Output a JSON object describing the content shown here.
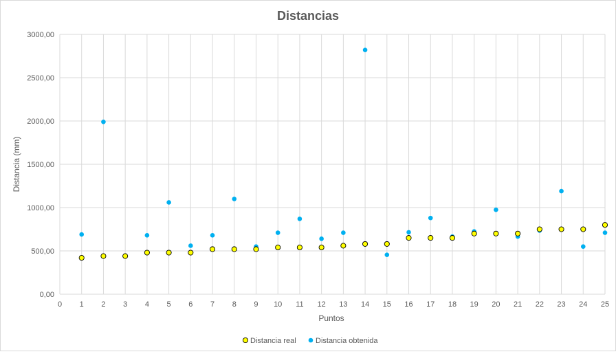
{
  "chart_data": {
    "type": "scatter",
    "title": "Distancias",
    "xlabel": "Puntos",
    "ylabel": "Distancia (mm)",
    "xlim": [
      0,
      25
    ],
    "ylim": [
      0,
      3000
    ],
    "x_ticks": [
      "0",
      "1",
      "2",
      "3",
      "4",
      "5",
      "6",
      "7",
      "8",
      "9",
      "10",
      "11",
      "12",
      "13",
      "14",
      "15",
      "16",
      "17",
      "18",
      "19",
      "20",
      "21",
      "22",
      "23",
      "24",
      "25"
    ],
    "y_ticks": [
      "0,00",
      "500,00",
      "1000,00",
      "1500,00",
      "2000,00",
      "2500,00",
      "3000,00"
    ],
    "grid": true,
    "legend_position": "bottom",
    "x": [
      1,
      2,
      3,
      4,
      5,
      6,
      7,
      8,
      9,
      10,
      11,
      12,
      13,
      14,
      15,
      16,
      17,
      18,
      19,
      20,
      21,
      22,
      23,
      24,
      25
    ],
    "series": [
      {
        "name": "Distancia real",
        "color": "#FFFF00",
        "edge_color": "#000000",
        "values": [
          420,
          440,
          440,
          480,
          480,
          480,
          520,
          520,
          520,
          540,
          540,
          540,
          560,
          580,
          580,
          650,
          650,
          650,
          700,
          700,
          700,
          750,
          750,
          750,
          800
        ]
      },
      {
        "name": "Distancia obtenida",
        "color": "#00B0F0",
        "edge_color": "#00B0F0",
        "values": [
          690,
          1990,
          445,
          680,
          1060,
          560,
          680,
          1100,
          550,
          710,
          870,
          640,
          710,
          2820,
          455,
          715,
          880,
          665,
          725,
          975,
          665,
          735,
          1190,
          550,
          710
        ]
      }
    ]
  }
}
